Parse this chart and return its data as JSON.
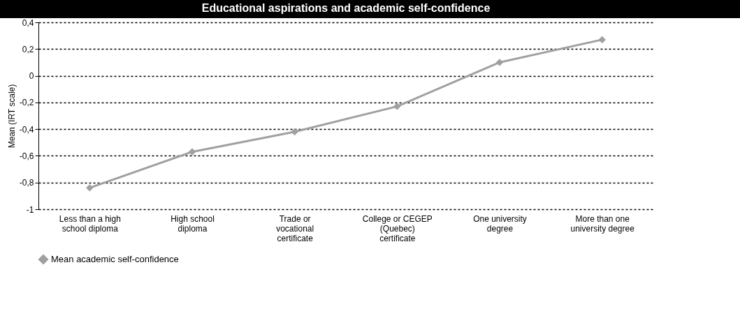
{
  "chart_data": {
    "type": "line",
    "title": "Educational aspirations and academic self-confidence",
    "ylabel": "Mean (IRT scale)",
    "categories": [
      "Less than a high school diploma",
      "High school diploma",
      "Trade or vocational certificate",
      "College or CEGEP (Quebec) certificate",
      "One university degree",
      "More than one university degree"
    ],
    "series": [
      {
        "name": "Mean academic self-confidence",
        "color": "#a0a0a0",
        "values": [
          -0.84,
          -0.57,
          -0.42,
          -0.23,
          0.1,
          0.27
        ]
      }
    ],
    "ylim": [
      -1,
      0.4
    ],
    "yticks": [
      {
        "value": -1,
        "label": "-1"
      },
      {
        "value": -0.8,
        "label": "-0,8"
      },
      {
        "value": -0.6,
        "label": "-0,6"
      },
      {
        "value": -0.4,
        "label": "-0,4"
      },
      {
        "value": -0.2,
        "label": "-0,2"
      },
      {
        "value": 0,
        "label": "0"
      },
      {
        "value": 0.2,
        "label": "0,2"
      },
      {
        "value": 0.4,
        "label": "0,4"
      }
    ],
    "grid": "y",
    "legend": "bottom",
    "marker": "diamond",
    "line_style": "solid"
  }
}
